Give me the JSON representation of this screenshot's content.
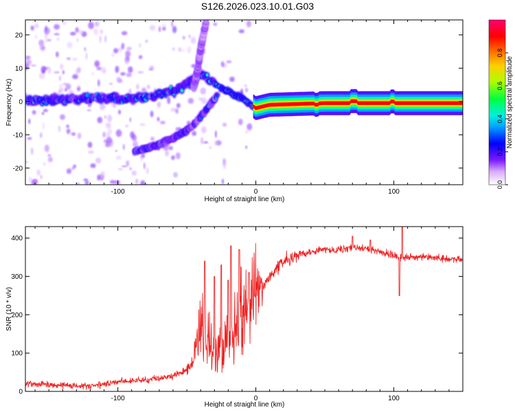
{
  "title": "S126.2026.023.10.01.G03",
  "colors": {
    "background": "#ffffff",
    "axis": "#000000",
    "snr_line": "#ee2222"
  },
  "chart_data": [
    {
      "type": "heatmap",
      "xlabel": "Height of straight line (km)",
      "ylabel": "Frequency (Hz)",
      "xlim": [
        -167,
        150
      ],
      "ylim": [
        -25,
        24.5
      ],
      "xticks": [
        -100,
        0,
        100
      ],
      "yticks": [
        -20,
        -10,
        0,
        10,
        20
      ],
      "colorbar": {
        "label": "Normalized spectral amplitude",
        "range": [
          0.0,
          1.0
        ],
        "ticks": [
          "0.0",
          "0.2",
          "0.4",
          "0.6",
          "0.8"
        ],
        "colormap": [
          "#ffffff",
          "#cc88ff",
          "#6600ff",
          "#0000ff",
          "#00e5ff",
          "#00ff66",
          "#ccff00",
          "#ffaa00",
          "#ff0000",
          "#ff0077"
        ]
      },
      "features": [
        {
          "name": "central band",
          "x": [
            -167,
            -120,
            -80,
            -60,
            -40,
            -25,
            -10,
            0,
            10,
            50,
            100,
            150
          ],
          "y": [
            0,
            1,
            1,
            3,
            8,
            4,
            1,
            -2,
            -1,
            -0.5,
            -0.5,
            -0.5
          ],
          "peak_amplitude": 0.9
        },
        {
          "name": "lower branch",
          "x": [
            -88,
            -70,
            -55,
            -45,
            -35,
            -28
          ],
          "y": [
            -15,
            -13,
            -10,
            -7,
            -2,
            2
          ],
          "peak_amplitude": 0.3
        },
        {
          "name": "upper branch",
          "x": [
            -45,
            -42,
            -40,
            -38,
            -36
          ],
          "y": [
            4,
            10,
            16,
            20,
            24
          ],
          "peak_amplitude": 0.2
        }
      ]
    },
    {
      "type": "line",
      "xlabel": "Height of straight line (km)",
      "ylabel": "SNR (10 * v/v)",
      "xlim": [
        -167,
        150
      ],
      "ylim": [
        0,
        430
      ],
      "xticks": [
        -100,
        0,
        100
      ],
      "yticks": [
        0,
        100,
        200,
        300,
        400
      ],
      "series": [
        {
          "name": "SNR",
          "x": [
            -167,
            -150,
            -130,
            -120,
            -110,
            -100,
            -90,
            -80,
            -70,
            -60,
            -50,
            -45,
            -40,
            -35,
            -30,
            -25,
            -20,
            -15,
            -10,
            -5,
            0,
            5,
            10,
            15,
            20,
            30,
            40,
            50,
            60,
            70,
            80,
            90,
            100,
            105,
            110,
            120,
            130,
            140,
            150
          ],
          "y": [
            20,
            18,
            15,
            14,
            18,
            25,
            28,
            30,
            35,
            40,
            55,
            80,
            150,
            120,
            100,
            90,
            110,
            140,
            180,
            220,
            250,
            270,
            300,
            320,
            340,
            355,
            365,
            370,
            370,
            375,
            372,
            365,
            355,
            350,
            350,
            350,
            348,
            345,
            345
          ],
          "spikes": [
            {
              "x": -37,
              "y": 340
            },
            {
              "x": -30,
              "y": 300
            },
            {
              "x": -25,
              "y": 330
            },
            {
              "x": -20,
              "y": 290
            },
            {
              "x": -18,
              "y": 380
            },
            {
              "x": -12,
              "y": 370
            },
            {
              "x": -5,
              "y": 310
            },
            {
              "x": 70,
              "y": 405
            },
            {
              "x": 83,
              "y": 395
            },
            {
              "x": 104,
              "y": 250
            },
            {
              "x": 106,
              "y": 430
            }
          ]
        }
      ]
    }
  ]
}
